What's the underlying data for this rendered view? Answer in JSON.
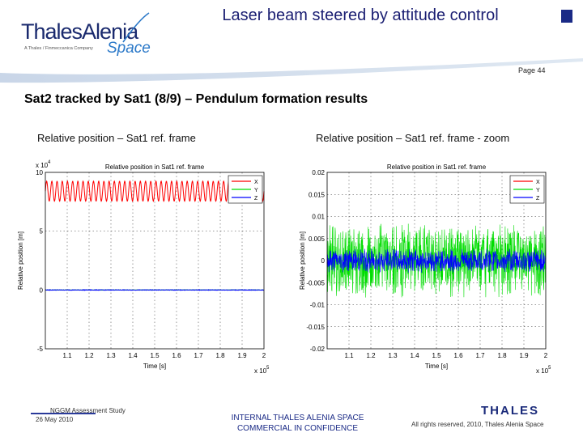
{
  "header": {
    "logo_main": "ThalesAlenia",
    "logo_tagline": "A Thales / Finmeccanica Company",
    "logo_space": "Space",
    "title": "Laser beam steered by attitude control",
    "page_label": "Page 44"
  },
  "slide": {
    "subtitle": "Sat2 tracked by Sat1 (8/9) – Pendulum formation results",
    "caption_left": "Relative position – Sat1 ref. frame",
    "caption_right": "Relative position – Sat1 ref. frame - zoom"
  },
  "footer": {
    "study": "NGGM Assessment Study",
    "date": "26 May 2010",
    "classification_line1": "INTERNAL THALES ALENIA SPACE",
    "classification_line2": "COMMERCIAL IN CONFIDENCE",
    "company_logo": "THALES",
    "rights": "All rights reserved, 2010, Thales Alenia Space"
  },
  "colors": {
    "x": "#ff0000",
    "y": "#00dd00",
    "z": "#0000ff",
    "title_blue": "#1a1e72"
  },
  "chart_data": [
    {
      "type": "line",
      "title": "Relative position in Sat1 ref. frame",
      "xlabel": "Time [s]",
      "ylabel": "Relative position [m]",
      "y_exponent_label": "x 10",
      "y_exponent": "4",
      "x_exponent_label": "x 10",
      "x_exponent": "5",
      "xlim": [
        1.0,
        2.0
      ],
      "ylim": [
        -5,
        10
      ],
      "xticks": [
        "1.1",
        "1.2",
        "1.3",
        "1.4",
        "1.5",
        "1.6",
        "1.7",
        "1.8",
        "1.9",
        "2"
      ],
      "yticks": [
        "-5",
        "0",
        "5",
        "10"
      ],
      "ytick_values": [
        -5,
        0,
        5,
        10
      ],
      "grid": true,
      "legend": "top-right",
      "series": [
        {
          "name": "X",
          "pattern": "sine",
          "center": 8.4,
          "amplitude": 0.85,
          "cycles": 42,
          "color": "#ff0000"
        },
        {
          "name": "Y",
          "pattern": "flat",
          "center": 0.0,
          "amplitude": 0.05,
          "cycles": 0,
          "color": "#00dd00"
        },
        {
          "name": "Z",
          "pattern": "flat",
          "center": 0.0,
          "amplitude": 0.08,
          "cycles": 60,
          "color": "#0000ff"
        }
      ]
    },
    {
      "type": "line",
      "title": "Relative position in Sat1 ref. frame",
      "xlabel": "Time [s]",
      "ylabel": "Relative position [m]",
      "x_exponent_label": "x 10",
      "x_exponent": "5",
      "xlim": [
        1.0,
        2.0
      ],
      "ylim": [
        -0.02,
        0.02
      ],
      "xticks": [
        "1.1",
        "1.2",
        "1.3",
        "1.4",
        "1.5",
        "1.6",
        "1.7",
        "1.8",
        "1.9",
        "2"
      ],
      "yticks": [
        "-0.02",
        "-0.015",
        "-0.01",
        "-0.005",
        "0",
        "0.005",
        "0.01",
        "0.015",
        "0.02"
      ],
      "ytick_values": [
        -0.02,
        -0.015,
        -0.01,
        -0.005,
        0,
        0.005,
        0.01,
        0.015,
        0.02
      ],
      "grid": true,
      "legend": "top-right",
      "series": [
        {
          "name": "X",
          "pattern": "offscale",
          "center": 0.0,
          "amplitude": 0.0,
          "cycles": 0,
          "color": "#ff0000"
        },
        {
          "name": "Y",
          "pattern": "noise",
          "center": 0.0,
          "amplitude": 0.0085,
          "cycles": 0,
          "color": "#00dd00"
        },
        {
          "name": "Z",
          "pattern": "noise",
          "center": 0.0,
          "amplitude": 0.0028,
          "cycles": 0,
          "color": "#0000ff"
        }
      ]
    }
  ]
}
